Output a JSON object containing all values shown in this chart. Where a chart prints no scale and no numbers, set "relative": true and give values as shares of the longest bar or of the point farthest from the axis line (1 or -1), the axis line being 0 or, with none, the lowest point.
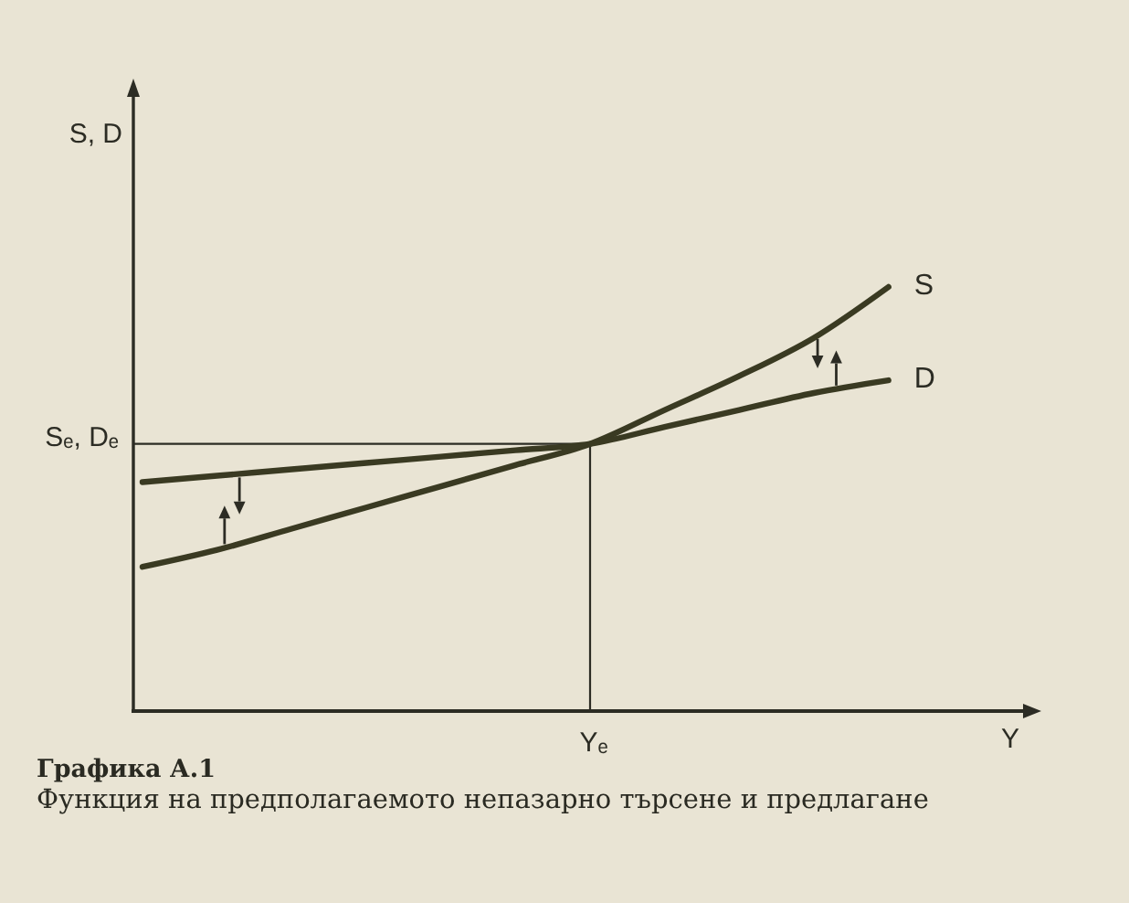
{
  "chart_data": {
    "type": "line",
    "title": "Графика А.1",
    "subtitle": "Функция на предполагаемото непазарно търсене и предлагане",
    "xlabel": "Y",
    "categories": [
      null,
      null,
      null,
      null,
      null,
      null,
      null,
      null,
      null,
      null,
      null,
      null,
      null
    ],
    "relative": true,
    "series": [
      {
        "name": "S",
        "color": "#3a3a22",
        "values": [
          0.34,
          0.38,
          0.43,
          0.48,
          0.53,
          0.58,
          0.63,
          0.71,
          0.79,
          0.88,
          1,
          null,
          null
        ]
      },
      {
        "name": "D",
        "color": "#3a3a22",
        "values": [
          0.54,
          0.555,
          0.57,
          0.585,
          0.6,
          0.615,
          0.63,
          0.67,
          0.71,
          0.75,
          0.78,
          null,
          null
        ]
      }
    ],
    "ref_lines": [
      {
        "axis": "y",
        "value": 0.63,
        "label": "Sₑ, Dₑ"
      }
    ],
    "annotations": [
      "S, D",
      "Yₑ"
    ],
    "legend": false,
    "marker": "none",
    "line_style": "solid"
  }
}
